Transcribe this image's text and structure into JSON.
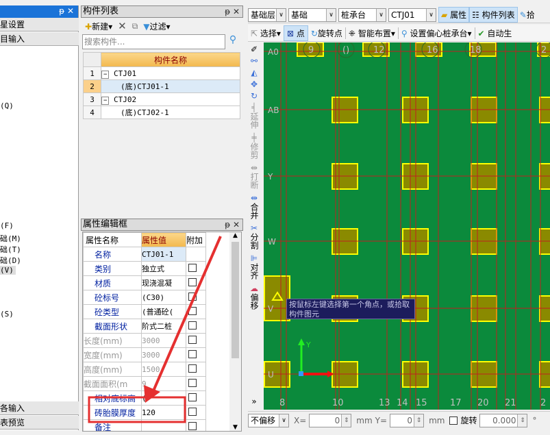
{
  "left_panel": {
    "items": [
      "星设置",
      "目输入",
      "(Q)",
      "(F)",
      "础(M)",
      "础(T)",
      "础(D)",
      "(V)",
      "(S)"
    ],
    "bottom_buttons": [
      "各输入",
      "表预览"
    ]
  },
  "component_list": {
    "title": "构件列表",
    "toolbar": {
      "new": "新建",
      "delete": "✕",
      "copy": "复制",
      "filter": "过滤"
    },
    "search_placeholder": "搜索构件...",
    "column_header": "构件名称",
    "rows": [
      {
        "num": "1",
        "name": "CTJ01",
        "type": "group"
      },
      {
        "num": "2",
        "name": "(底)CTJ01-1",
        "type": "child",
        "selected": true
      },
      {
        "num": "3",
        "name": "CTJ02",
        "type": "group"
      },
      {
        "num": "4",
        "name": "(底)CTJ02-1",
        "type": "child"
      }
    ]
  },
  "property_editor": {
    "title": "属性编辑框",
    "headers": [
      "属性名称",
      "属性值",
      "附加"
    ],
    "rows": [
      {
        "name": "名称",
        "value": "CTJ01-1",
        "style": "blue",
        "checkbox": false
      },
      {
        "name": "类别",
        "value": "独立式",
        "style": "blue",
        "checkbox": true
      },
      {
        "name": "材质",
        "value": "现浇混凝",
        "style": "blue",
        "checkbox": true
      },
      {
        "name": "砼标号",
        "value": "(C30)",
        "style": "blue",
        "checkbox": true
      },
      {
        "name": "砼类型",
        "value": "(普通砼(",
        "style": "blue",
        "checkbox": true
      },
      {
        "name": "截面形状",
        "value": "阶式二桩",
        "style": "blue",
        "checkbox": true
      },
      {
        "name": "长度(mm)",
        "value": "3000",
        "style": "gray",
        "checkbox": true
      },
      {
        "name": "宽度(mm)",
        "value": "3000",
        "style": "gray",
        "checkbox": true
      },
      {
        "name": "高度(mm)",
        "value": "1500",
        "style": "gray",
        "checkbox": true
      },
      {
        "name": "截面面积(m",
        "value": "9",
        "style": "gray",
        "checkbox": true
      },
      {
        "name": "相对底标高",
        "value": "(",
        "style": "blue",
        "checkbox": true
      },
      {
        "name": "砖胎膜厚度",
        "value": "120",
        "style": "blue",
        "checkbox": true,
        "highlighted": true
      },
      {
        "name": "备注",
        "value": "",
        "style": "blue",
        "checkbox": true
      }
    ],
    "highlight_color": "#e53030"
  },
  "toolbar1": {
    "floor": "基础层",
    "category": "基础",
    "type": "桩承台",
    "component": "CTJ01",
    "properties_btn": "属性",
    "component_list_btn": "构件列表",
    "pick_btn": "拾"
  },
  "toolbar2": {
    "select": "选择",
    "point": "点",
    "rotate_point": "旋转点",
    "smart_layout": "智能布置",
    "set_eccentric": "设置偏心桩承台",
    "auto": "自动生"
  },
  "side_tools": [
    "延伸",
    "修剪",
    "打断",
    "合并",
    "分割",
    "对齐",
    "偏移"
  ],
  "canvas": {
    "background": "#0b8a3c",
    "row_labels": [
      "A0",
      "AB",
      "Y",
      "W",
      "V",
      "U"
    ],
    "top_labels": [
      "9",
      "()",
      "12",
      "16",
      "18",
      "2"
    ],
    "bottom_labels": [
      "8",
      "10",
      "13",
      "14",
      "15",
      "17",
      "20",
      "21",
      "2"
    ],
    "tooltip": "按鼠标左键选择第一个角点，或拾取构件图元",
    "axis_y": "Y"
  },
  "status_bar": {
    "offset_mode": "不偏移",
    "x_label": "X=",
    "x_value": "0",
    "unit": "mm",
    "y_label": "Y=",
    "y_value": "0",
    "rotate_label": "旋转",
    "rotate_value": "0.000",
    "degree": "°"
  }
}
